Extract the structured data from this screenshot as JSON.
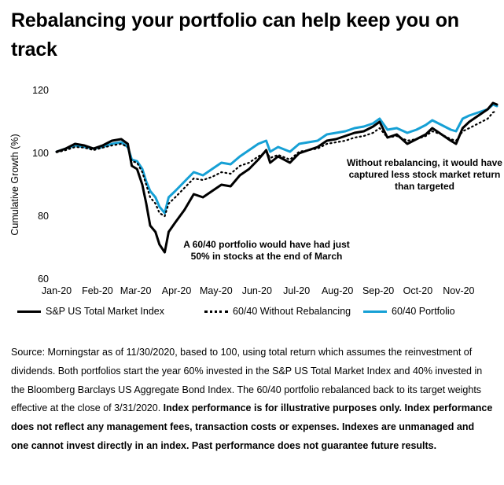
{
  "title": "Rebalancing your portfolio can help keep you on track",
  "chart_data": {
    "type": "line",
    "title": "",
    "xlabel": "",
    "ylabel": "Cumulative Growth (%)",
    "ylim": [
      60,
      120
    ],
    "yticks": [
      60,
      80,
      100,
      120
    ],
    "x_tick_labels": [
      "Jan-20",
      "Feb-20",
      "Mar-20",
      "Apr-20",
      "May-20",
      "Jun-20",
      "Jul-20",
      "Aug-20",
      "Sep-20",
      "Oct-20",
      "Nov-20"
    ],
    "grid": false,
    "legend_position": "bottom",
    "x": [
      "2020-01-01",
      "2020-01-08",
      "2020-01-15",
      "2020-01-22",
      "2020-01-29",
      "2020-02-05",
      "2020-02-12",
      "2020-02-19",
      "2020-02-24",
      "2020-02-27",
      "2020-03-02",
      "2020-03-06",
      "2020-03-09",
      "2020-03-12",
      "2020-03-16",
      "2020-03-19",
      "2020-03-23",
      "2020-03-26",
      "2020-03-31",
      "2020-04-07",
      "2020-04-14",
      "2020-04-21",
      "2020-04-28",
      "2020-05-05",
      "2020-05-12",
      "2020-05-19",
      "2020-05-26",
      "2020-06-02",
      "2020-06-08",
      "2020-06-11",
      "2020-06-17",
      "2020-06-26",
      "2020-07-03",
      "2020-07-10",
      "2020-07-17",
      "2020-07-24",
      "2020-07-31",
      "2020-08-07",
      "2020-08-14",
      "2020-08-21",
      "2020-08-28",
      "2020-09-02",
      "2020-09-08",
      "2020-09-15",
      "2020-09-23",
      "2020-09-30",
      "2020-10-07",
      "2020-10-12",
      "2020-10-19",
      "2020-10-26",
      "2020-10-30",
      "2020-11-04",
      "2020-11-09",
      "2020-11-16",
      "2020-11-23",
      "2020-11-27",
      "2020-11-30"
    ],
    "series": [
      {
        "name": "S&P US Total Market Index",
        "color": "#000000",
        "style": "solid",
        "values": [
          100.5,
          101.5,
          103,
          102.5,
          101.5,
          102.5,
          104,
          104.5,
          103,
          96,
          95,
          90,
          84,
          77,
          75,
          71,
          68.5,
          75,
          78,
          82,
          87,
          86,
          88,
          90,
          89.5,
          93,
          95,
          98,
          101,
          97,
          99,
          97,
          100,
          101,
          102,
          104,
          104.5,
          105.5,
          106.5,
          107,
          108.5,
          110,
          105,
          106,
          103,
          104.5,
          106,
          108,
          106,
          104,
          103,
          108,
          110,
          112,
          114,
          116,
          115.5
        ]
      },
      {
        "name": "60/40 Without Rebalancing",
        "color": "#000000",
        "style": "dotted",
        "values": [
          100.3,
          101,
          102,
          101.8,
          101,
          101.8,
          102.5,
          103,
          102,
          97.5,
          97,
          94,
          90,
          86,
          84,
          81,
          80,
          84,
          86,
          89,
          92,
          91.5,
          92.5,
          94,
          93.5,
          96,
          97,
          99,
          100.5,
          98.5,
          99.5,
          98,
          100.5,
          101,
          101.5,
          103,
          103.5,
          104,
          105,
          105.5,
          106.5,
          108,
          105,
          105.5,
          104,
          104.5,
          105.5,
          107,
          106,
          104.5,
          104,
          107,
          108,
          109.5,
          111,
          113,
          113.5
        ]
      },
      {
        "name": "60/40 Portfolio",
        "color": "#16a0d5",
        "style": "solid",
        "values": [
          100.5,
          101.5,
          102.5,
          102,
          101.5,
          102,
          103,
          103.5,
          102,
          98,
          97.5,
          95,
          91,
          88,
          86,
          83,
          81,
          86,
          88,
          91,
          94,
          93,
          95,
          97,
          96.5,
          99,
          101,
          103,
          104,
          100.5,
          102,
          100.5,
          103,
          103.5,
          104,
          106,
          106.5,
          107,
          108,
          108.5,
          109.5,
          111,
          107.5,
          108,
          106.5,
          107.5,
          109,
          110.5,
          109,
          107.5,
          107,
          111,
          112,
          113,
          114,
          115.5,
          115
        ]
      }
    ],
    "annotations": [
      "A 60/40 portfolio would have had just 50% in stocks at the end of March",
      "Without rebalancing, it would have captured less stock market return than targeted"
    ]
  },
  "annotations_display": {
    "march": [
      "A 60/40 portfolio would have had just",
      "50% in stocks at the end of March"
    ],
    "rebal": [
      "Without rebalancing, it would have",
      "captured less stock market return",
      "than targeted"
    ]
  },
  "legend": {
    "sp": "S&P US Total Market Index",
    "norb": "60/40 Without Rebalancing",
    "port": "60/40 Portfolio"
  },
  "source": {
    "normal": "Source: Morningstar as of 11/30/2020, based to 100, using total return which assumes the reinvestment of dividends. Both portfolios start the year 60% invested in the S&P US Total Market Index and 40% invested in the Bloomberg Barclays US Aggregate Bond Index. The 60/40 portfolio rebalanced back to its target weights effective at the close of 3/31/2020.",
    "bold": "Index performance is for illustrative purposes only. Index performance does not reflect any management fees, transaction costs or expenses. Indexes are unmanaged and one cannot invest directly in an index. Past performance does not guarantee future results."
  }
}
